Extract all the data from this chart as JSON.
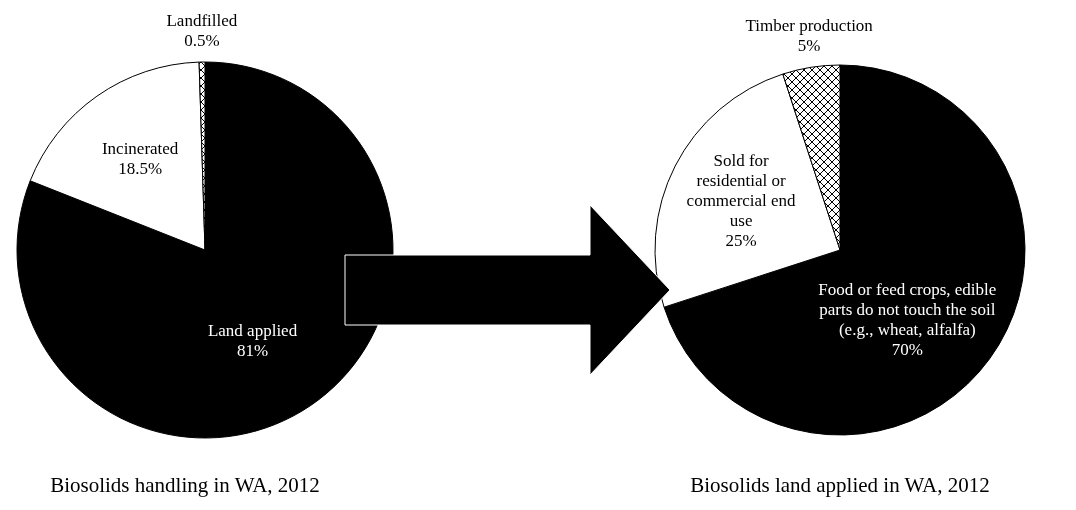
{
  "chart_data": [
    {
      "type": "pie",
      "title": "Biosolids handling in WA, 2012",
      "categories": [
        "Land applied",
        "Incinerated",
        "Landfilled"
      ],
      "values": [
        81,
        18.5,
        0.5
      ],
      "value_labels": [
        "81%",
        "18.5%",
        "0.5%"
      ],
      "colors": [
        "#000000",
        "#ffffff",
        "#000000"
      ]
    },
    {
      "type": "pie",
      "title": "Biosolids land applied in WA, 2012",
      "categories": [
        "Food or feed crops, edible parts do not touch the soil (e.g., wheat, alfalfa)",
        "Sold for residential or commercial end use",
        "Timber production"
      ],
      "values": [
        70,
        25,
        5
      ],
      "value_labels": [
        "70%",
        "25%",
        "5%"
      ],
      "colors": [
        "#000000",
        "#ffffff",
        "#000000"
      ]
    }
  ]
}
